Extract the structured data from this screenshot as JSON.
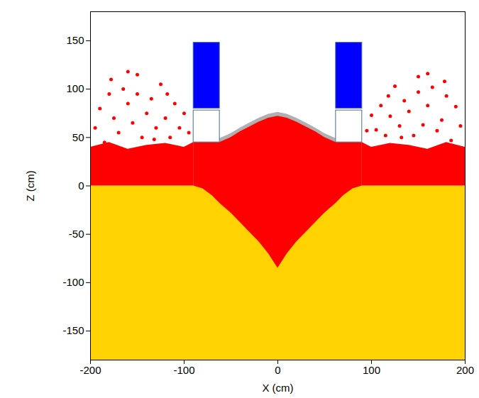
{
  "chart_data": {
    "type": "region",
    "x_label": "X (cm)",
    "y_label": "Z (cm)",
    "xlim": [
      -200,
      200
    ],
    "ylim": [
      -180,
      180
    ],
    "xticks": [
      -200,
      -100,
      0,
      100,
      200
    ],
    "yticks": [
      -150,
      -100,
      -50,
      0,
      50,
      100,
      150
    ],
    "grid": false,
    "bands": [
      {
        "color": "#ffd200",
        "x": [
          -200,
          200
        ],
        "lower": [
          -180,
          -180
        ],
        "upper": [
          0,
          0
        ]
      },
      {
        "color": "#ff0000",
        "x": [
          -200,
          -180,
          -160,
          -140,
          -120,
          -100,
          -90
        ],
        "lower": [
          0,
          0,
          0,
          0,
          0,
          0,
          0
        ],
        "upper": [
          40,
          45,
          38,
          42,
          44,
          40,
          45
        ]
      },
      {
        "color": "#ff0000",
        "x": [
          90,
          100,
          120,
          140,
          160,
          180,
          200
        ],
        "lower": [
          0,
          0,
          0,
          0,
          0,
          0,
          0
        ],
        "upper": [
          45,
          40,
          44,
          42,
          38,
          45,
          40
        ]
      },
      {
        "color": "#b0b0b0",
        "x": [
          -62,
          -50,
          -40,
          -30,
          -20,
          -10,
          0,
          10,
          20,
          30,
          40,
          50,
          62
        ],
        "lower": [
          43,
          48,
          54,
          59,
          64,
          68,
          70,
          68,
          64,
          59,
          54,
          48,
          43
        ],
        "upper": [
          49,
          54,
          60,
          65,
          70,
          74,
          76,
          74,
          70,
          65,
          60,
          54,
          49
        ]
      },
      {
        "color": "#ff0000",
        "x": [
          -90,
          -80,
          -70,
          -62,
          -50,
          -40,
          -30,
          -20,
          -10,
          0,
          10,
          20,
          30,
          40,
          50,
          62,
          70,
          80,
          90
        ],
        "lower": [
          0,
          -3,
          -10,
          -18,
          -28,
          -38,
          -48,
          -58,
          -70,
          -85,
          -70,
          -58,
          -48,
          -38,
          -28,
          -18,
          -10,
          -3,
          0
        ],
        "upper": [
          45,
          45,
          45,
          45,
          50,
          56,
          61,
          66,
          70,
          72,
          70,
          66,
          61,
          56,
          50,
          45,
          45,
          45,
          45
        ]
      }
    ],
    "rects": [
      {
        "color": "#0000ff",
        "x1": -90,
        "x2": -62,
        "y1": 80,
        "y2": 148
      },
      {
        "color": "#ffffff",
        "x1": -90,
        "x2": -62,
        "y1": 45,
        "y2": 78
      },
      {
        "color": "#0000ff",
        "x1": 62,
        "x2": 90,
        "y1": 80,
        "y2": 148
      },
      {
        "color": "#ffffff",
        "x1": 62,
        "x2": 90,
        "y1": 45,
        "y2": 78
      }
    ],
    "points": {
      "color": "#ff0000",
      "xy": [
        [
          -195,
          60
        ],
        [
          -190,
          80
        ],
        [
          -185,
          45
        ],
        [
          -180,
          95
        ],
        [
          -175,
          70
        ],
        [
          -170,
          55
        ],
        [
          -165,
          100
        ],
        [
          -160,
          85
        ],
        [
          -155,
          65
        ],
        [
          -150,
          115
        ],
        [
          -145,
          50
        ],
        [
          -140,
          75
        ],
        [
          -135,
          90
        ],
        [
          -130,
          60
        ],
        [
          -125,
          105
        ],
        [
          -120,
          70
        ],
        [
          -115,
          50
        ],
        [
          -110,
          85
        ],
        [
          -105,
          60
        ],
        [
          -100,
          75
        ],
        [
          -95,
          55
        ],
        [
          -178,
          110
        ],
        [
          -160,
          118
        ],
        [
          -150,
          95
        ],
        [
          -132,
          48
        ],
        [
          -118,
          95
        ],
        [
          195,
          62
        ],
        [
          190,
          82
        ],
        [
          185,
          47
        ],
        [
          180,
          93
        ],
        [
          175,
          68
        ],
        [
          170,
          57
        ],
        [
          165,
          102
        ],
        [
          160,
          83
        ],
        [
          155,
          63
        ],
        [
          150,
          113
        ],
        [
          145,
          52
        ],
        [
          140,
          77
        ],
        [
          135,
          88
        ],
        [
          130,
          62
        ],
        [
          125,
          103
        ],
        [
          120,
          72
        ],
        [
          115,
          52
        ],
        [
          110,
          83
        ],
        [
          105,
          58
        ],
        [
          100,
          73
        ],
        [
          95,
          57
        ],
        [
          178,
          108
        ],
        [
          160,
          116
        ],
        [
          150,
          97
        ],
        [
          132,
          50
        ],
        [
          118,
          93
        ]
      ]
    }
  }
}
